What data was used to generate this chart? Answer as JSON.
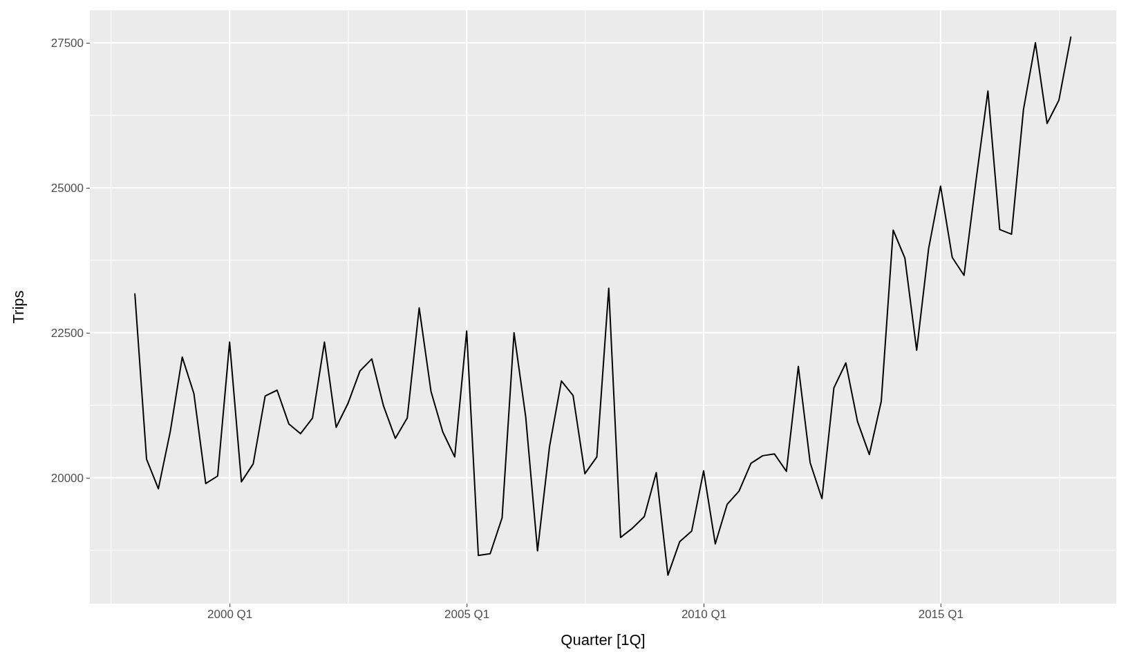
{
  "chart_data": {
    "type": "line",
    "xlabel": "Quarter [1Q]",
    "ylabel": "Trips",
    "x": [
      "1998-01",
      "1998-04",
      "1998-07",
      "1998-10",
      "1999-01",
      "1999-04",
      "1999-07",
      "1999-10",
      "2000-01",
      "2000-04",
      "2000-07",
      "2000-10",
      "2001-01",
      "2001-04",
      "2001-07",
      "2001-10",
      "2002-01",
      "2002-04",
      "2002-07",
      "2002-10",
      "2003-01",
      "2003-04",
      "2003-07",
      "2003-10",
      "2004-01",
      "2004-04",
      "2004-07",
      "2004-10",
      "2005-01",
      "2005-04",
      "2005-07",
      "2005-10",
      "2006-01",
      "2006-04",
      "2006-07",
      "2006-10",
      "2007-01",
      "2007-04",
      "2007-07",
      "2007-10",
      "2008-01",
      "2008-04",
      "2008-07",
      "2008-10",
      "2009-01",
      "2009-04",
      "2009-07",
      "2009-10",
      "2010-01",
      "2010-04",
      "2010-07",
      "2010-10",
      "2011-01",
      "2011-04",
      "2011-07",
      "2011-10",
      "2012-01",
      "2012-04",
      "2012-07",
      "2012-10",
      "2013-01",
      "2013-04",
      "2013-07",
      "2013-10",
      "2014-01",
      "2014-04",
      "2014-07",
      "2014-10",
      "2015-01",
      "2015-04",
      "2015-07",
      "2015-10",
      "2016-01",
      "2016-04",
      "2016-07",
      "2016-10",
      "2017-01",
      "2017-04",
      "2017-07",
      "2017-10"
    ],
    "series": [
      {
        "color": "#000000",
        "values": [
          23170,
          20320,
          19810,
          20800,
          22080,
          21450,
          19900,
          20030,
          22340,
          19930,
          20240,
          21410,
          21510,
          20930,
          20760,
          21030,
          22340,
          20870,
          21280,
          21840,
          22050,
          21240,
          20680,
          21030,
          22930,
          21490,
          20790,
          20360,
          22530,
          18660,
          18690,
          19310,
          22500,
          21050,
          18740,
          20530,
          21670,
          21420,
          20070,
          20360,
          23270,
          18970,
          19130,
          19330,
          20090,
          18320,
          18900,
          19080,
          20120,
          18860,
          19540,
          19770,
          20250,
          20380,
          20410,
          20110,
          21920,
          20260,
          19640,
          21550,
          21980,
          20970,
          20400,
          21320,
          24270,
          23790,
          22200,
          23950,
          25030,
          23800,
          23490,
          25120,
          26670,
          24280,
          24200,
          26350,
          27500,
          26110,
          26510,
          27600
        ]
      }
    ],
    "xlim": [
      "1997-01-19",
      "2018-09-16"
    ],
    "xticks": [
      {
        "value": "2000-01",
        "label": "2000 Q1"
      },
      {
        "value": "2005-01",
        "label": "2005 Q1"
      },
      {
        "value": "2010-01",
        "label": "2010 Q1"
      },
      {
        "value": "2015-01",
        "label": "2015 Q1"
      }
    ],
    "ylim": [
      17830,
      28060
    ],
    "yticks": [
      20000,
      22500,
      25000,
      27500
    ],
    "grid": true
  }
}
